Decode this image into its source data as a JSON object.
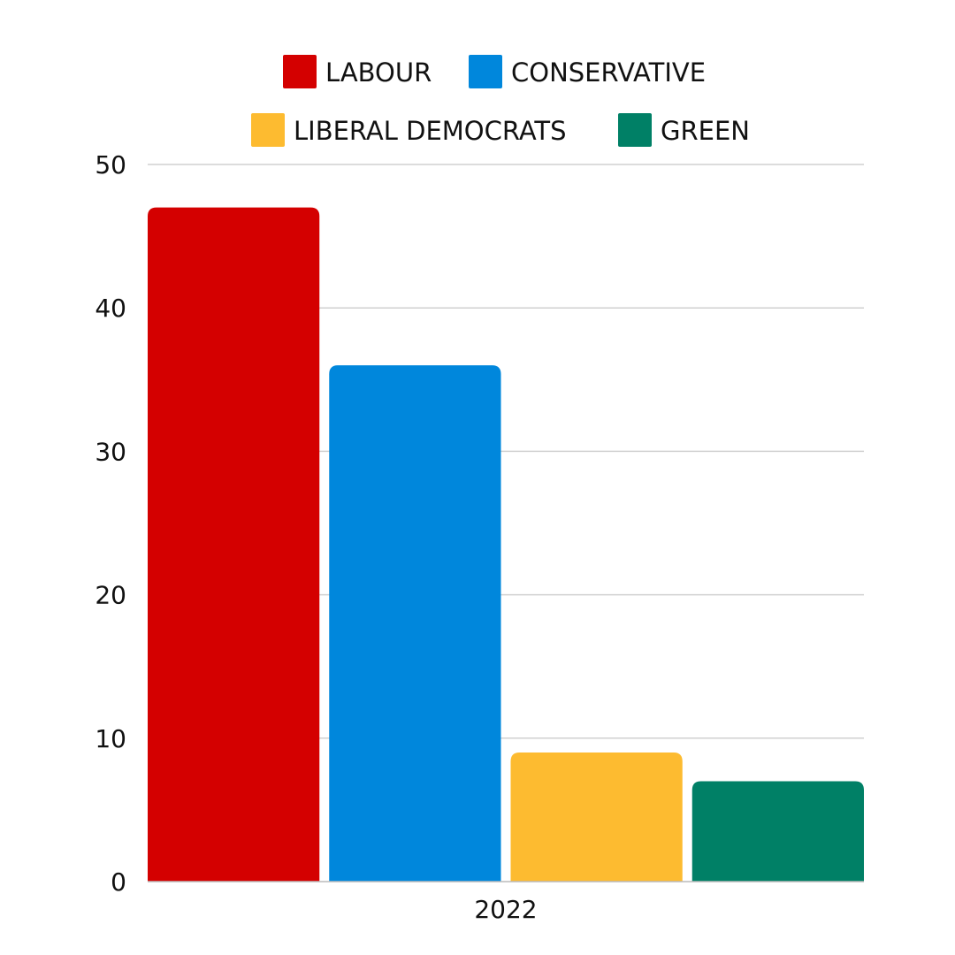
{
  "chart_data": {
    "type": "bar",
    "title": "",
    "xlabel": "",
    "ylabel": "",
    "categories": [
      "2022"
    ],
    "series": [
      {
        "name": "LABOUR",
        "values": [
          47
        ],
        "color": "#d40000"
      },
      {
        "name": "CONSERVATIVE",
        "values": [
          36
        ],
        "color": "#0087dc"
      },
      {
        "name": "LIBERAL DEMOCRATS",
        "values": [
          9
        ],
        "color": "#fdbb30"
      },
      {
        "name": "GREEN",
        "values": [
          7
        ],
        "color": "#008066"
      }
    ],
    "ylim": [
      0,
      50
    ],
    "yticks": [
      0,
      10,
      20,
      30,
      40,
      50
    ],
    "grid": true,
    "legend_position": "top"
  }
}
